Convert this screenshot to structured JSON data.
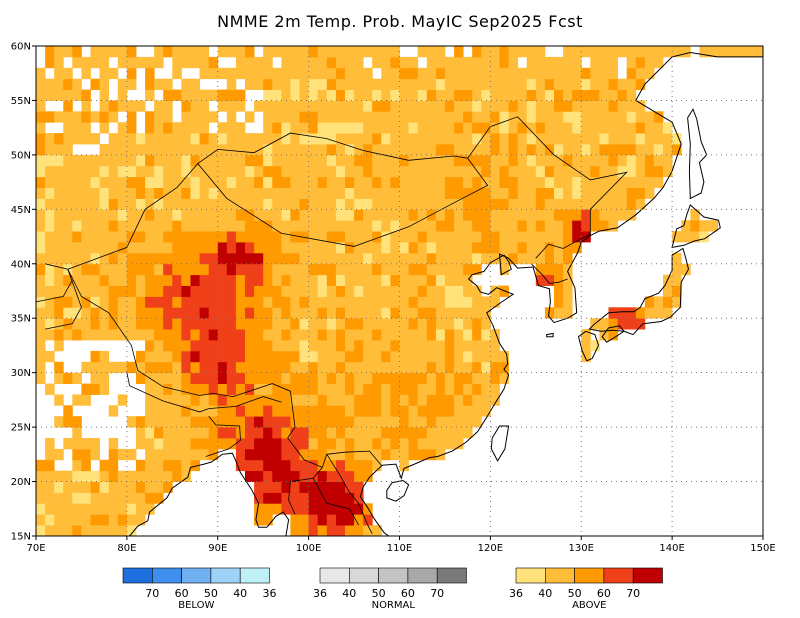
{
  "title": "NMME 2m Temp. Prob. MayIC  Sep2025 Fcst",
  "map": {
    "lon_range": [
      70,
      150
    ],
    "lat_range": [
      15,
      60
    ],
    "lon_ticks": [
      "70E",
      "80E",
      "90E",
      "100E",
      "110E",
      "120E",
      "130E",
      "140E",
      "150E"
    ],
    "lat_ticks": [
      "15N",
      "20N",
      "25N",
      "30N",
      "35N",
      "40N",
      "45N",
      "50N",
      "55N",
      "60N"
    ],
    "grid_style": "dotted"
  },
  "legend": {
    "below": {
      "caption": "BELOW",
      "colors": [
        "#1f6fe0",
        "#3f8fee",
        "#6fb0f2",
        "#9fd2f6",
        "#bff0f8"
      ],
      "labels": [
        "70",
        "60",
        "50",
        "40",
        "36"
      ]
    },
    "normal": {
      "caption": "NORMAL",
      "colors": [
        "#e8e8e8",
        "#d8d8d8",
        "#c4c4c4",
        "#a8a8a8",
        "#7a7a7a"
      ],
      "labels": [
        "36",
        "40",
        "50",
        "60",
        "70"
      ]
    },
    "above": {
      "caption": "ABOVE",
      "colors": [
        "#ffe27a",
        "#ffbd3a",
        "#ff9a00",
        "#f0401a",
        "#c00000"
      ],
      "labels": [
        "36",
        "40",
        "50",
        "60",
        "70"
      ]
    }
  }
}
